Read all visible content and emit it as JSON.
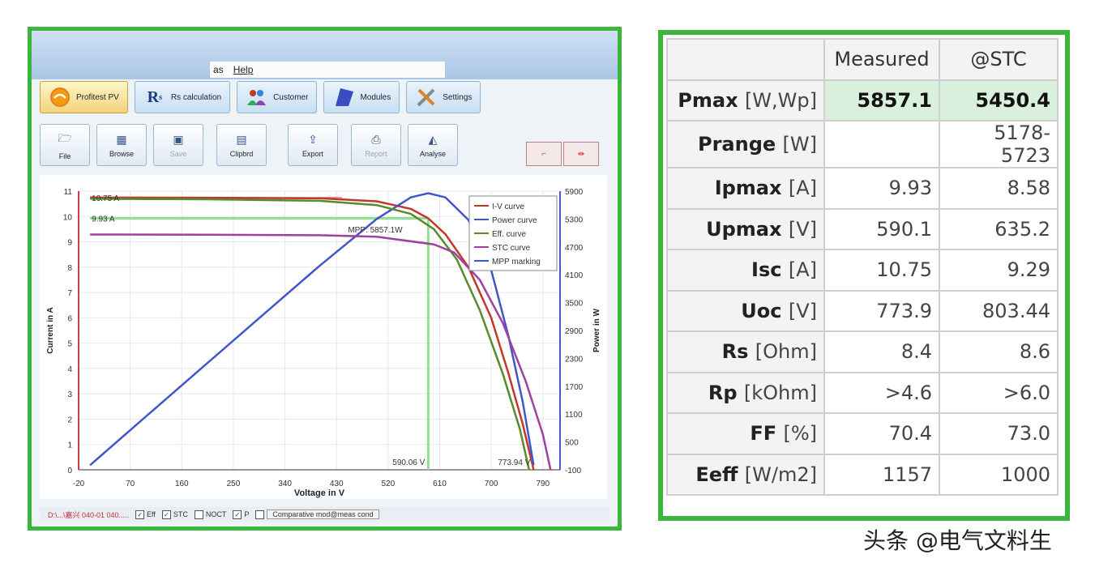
{
  "app": {
    "menu": [
      "as",
      "Help"
    ],
    "tabs": [
      {
        "label": "Profitest PV",
        "icon": "sun-icon"
      },
      {
        "label": "Rs calculation",
        "icon": "rs-icon"
      },
      {
        "label": "Customer",
        "icon": "people-icon"
      },
      {
        "label": "Modules",
        "icon": "module-icon"
      },
      {
        "label": "Settings",
        "icon": "tools-icon"
      }
    ],
    "tools": [
      {
        "label": "File",
        "icon": "folder-icon"
      },
      {
        "label": "Browse",
        "icon": "grid-icon"
      },
      {
        "label": "Save",
        "icon": "disk-icon"
      },
      {
        "label": "Clipbrd",
        "icon": "clipboard-icon"
      },
      {
        "label": "Export",
        "icon": "export-icon"
      },
      {
        "label": "Report",
        "icon": "printer-icon"
      },
      {
        "label": "Analyse",
        "icon": "analyse-icon"
      }
    ],
    "status": {
      "path": "D:\\...\\嘉兴 040-01 040.....",
      "checks": [
        {
          "label": "Eff",
          "checked": true
        },
        {
          "label": "STC",
          "checked": true
        },
        {
          "label": "NOCT",
          "checked": false
        },
        {
          "label": "P",
          "checked": true
        }
      ],
      "compare_label": "Comparative mod@meas cond",
      "compare_checked": false
    }
  },
  "chart_data": {
    "type": "line",
    "xlabel": "Voltage in V",
    "ylabel": "Current in A",
    "y2label": "Power in W",
    "xlim": [
      -20,
      820
    ],
    "ylim": [
      0,
      11
    ],
    "y2lim": [
      -100,
      5900
    ],
    "x_ticks": [
      -20,
      70,
      160,
      250,
      340,
      430,
      520,
      610,
      700,
      790
    ],
    "y_ticks": [
      0,
      1,
      2,
      3,
      4,
      5,
      6,
      7,
      8,
      9,
      10,
      11
    ],
    "y2_ticks": [
      -100,
      500,
      1100,
      1700,
      2300,
      2900,
      3500,
      4100,
      4700,
      5300,
      5900
    ],
    "legend": [
      "I-V curve",
      "Power curve",
      "Eff. curve",
      "STC curve",
      "MPP marking"
    ],
    "legend_position": "top-right",
    "series": [
      {
        "name": "I-V curve",
        "color": "#c0392b",
        "axis": "y",
        "points": [
          [
            0,
            10.75
          ],
          [
            200,
            10.74
          ],
          [
            400,
            10.72
          ],
          [
            500,
            10.6
          ],
          [
            560,
            10.3
          ],
          [
            590,
            9.93
          ],
          [
            620,
            9.3
          ],
          [
            660,
            8.0
          ],
          [
            700,
            6.0
          ],
          [
            730,
            3.8
          ],
          [
            755,
            1.8
          ],
          [
            773.9,
            0
          ]
        ]
      },
      {
        "name": "Power curve",
        "color": "#4156c8",
        "axis": "y2",
        "points": [
          [
            0,
            0
          ],
          [
            100,
            1075
          ],
          [
            200,
            2148
          ],
          [
            300,
            3219
          ],
          [
            400,
            4288
          ],
          [
            500,
            5300
          ],
          [
            560,
            5768
          ],
          [
            590,
            5857.1
          ],
          [
            620,
            5766
          ],
          [
            660,
            5280
          ],
          [
            700,
            4200
          ],
          [
            730,
            2774
          ],
          [
            755,
            1359
          ],
          [
            773.9,
            0
          ]
        ]
      },
      {
        "name": "Eff. curve",
        "color": "#5a8a2a",
        "axis": "y",
        "points": [
          [
            0,
            10.7
          ],
          [
            200,
            10.68
          ],
          [
            400,
            10.62
          ],
          [
            500,
            10.45
          ],
          [
            560,
            10.1
          ],
          [
            600,
            9.5
          ],
          [
            640,
            8.3
          ],
          [
            680,
            6.3
          ],
          [
            720,
            3.8
          ],
          [
            750,
            1.6
          ],
          [
            766,
            0
          ]
        ]
      },
      {
        "name": "STC curve",
        "color": "#a040a0",
        "axis": "y",
        "points": [
          [
            0,
            9.29
          ],
          [
            200,
            9.28
          ],
          [
            400,
            9.26
          ],
          [
            500,
            9.2
          ],
          [
            600,
            8.9
          ],
          [
            635.2,
            8.58
          ],
          [
            680,
            7.5
          ],
          [
            720,
            5.8
          ],
          [
            760,
            3.5
          ],
          [
            790,
            1.4
          ],
          [
            803.44,
            0
          ]
        ]
      }
    ],
    "annotations": [
      {
        "text": "10.75 A",
        "x": 0,
        "y": 10.75
      },
      {
        "text": "9.93 A",
        "x": 0,
        "y": 9.93
      },
      {
        "text": "MPP: 5857.1W",
        "x": 450,
        "y": 9.5
      },
      {
        "text": "590.06 V",
        "x": 590,
        "y": 0
      },
      {
        "text": "773.94 V",
        "x": 773.9,
        "y": 0
      }
    ],
    "mpp": {
      "voltage": 590.06,
      "current": 9.93
    },
    "grid": true
  },
  "table": {
    "headers": [
      "",
      "Measured",
      "@STC"
    ],
    "rows": [
      {
        "label": "Pmax",
        "unit": "[W,Wp]",
        "measured": "5857.1",
        "stc": "5450.4",
        "highlight": true
      },
      {
        "label": "Prange",
        "unit": "[W]",
        "measured": "",
        "stc": "5178-5723"
      },
      {
        "label": "Ipmax",
        "unit": "[A]",
        "measured": "9.93",
        "stc": "8.58"
      },
      {
        "label": "Upmax",
        "unit": "[V]",
        "measured": "590.1",
        "stc": "635.2"
      },
      {
        "label": "Isc",
        "unit": "[A]",
        "measured": "10.75",
        "stc": "9.29"
      },
      {
        "label": "Uoc",
        "unit": "[V]",
        "measured": "773.9",
        "stc": "803.44"
      },
      {
        "label": "Rs",
        "unit": "[Ohm]",
        "measured": "8.4",
        "stc": "8.6"
      },
      {
        "label": "Rp",
        "unit": "[kOhm]",
        "measured": ">4.6",
        "stc": ">6.0"
      },
      {
        "label": "FF",
        "unit": "[%]",
        "measured": "70.4",
        "stc": "73.0"
      },
      {
        "label": "Eeff",
        "unit": "[W/m2]",
        "measured": "1157",
        "stc": "1000"
      }
    ]
  },
  "watermark": "头条 @电气文料生"
}
